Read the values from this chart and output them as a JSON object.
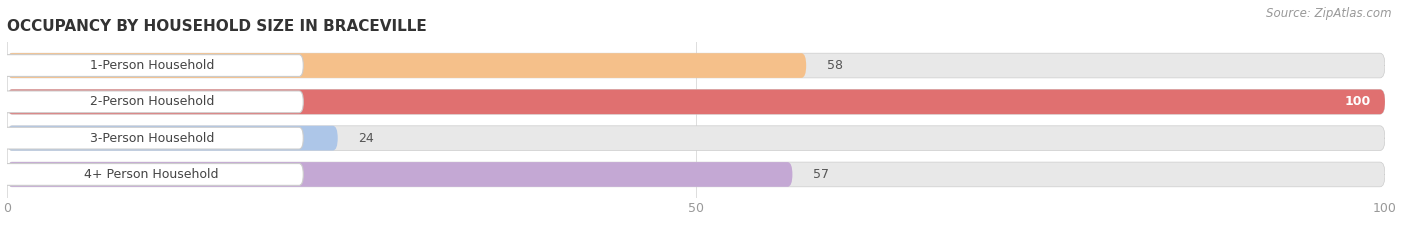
{
  "title": "OCCUPANCY BY HOUSEHOLD SIZE IN BRACEVILLE",
  "source": "Source: ZipAtlas.com",
  "categories": [
    "1-Person Household",
    "2-Person Household",
    "3-Person Household",
    "4+ Person Household"
  ],
  "values": [
    58,
    100,
    24,
    57
  ],
  "bar_colors": [
    "#f5c08a",
    "#e07070",
    "#adc6e8",
    "#c4a8d4"
  ],
  "label_colors": [
    "#555555",
    "#ffffff",
    "#555555",
    "#555555"
  ],
  "xlim": [
    0,
    100
  ],
  "xticks": [
    0,
    50,
    100
  ],
  "background_color": "#ffffff",
  "bar_background_color": "#e8e8e8",
  "bar_height": 0.68,
  "label_fontsize": 9,
  "title_fontsize": 11,
  "source_fontsize": 8.5,
  "tick_fontsize": 9
}
